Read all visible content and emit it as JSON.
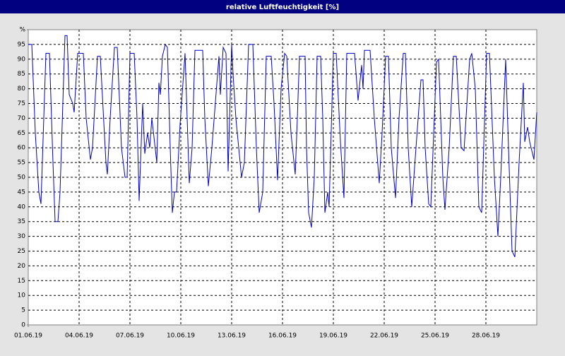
{
  "chart_data": {
    "type": "line",
    "title": "relative Luftfeuchtigkeit [%]",
    "x": [
      0,
      5,
      10,
      15,
      18,
      25,
      30,
      35,
      38,
      42,
      45,
      52,
      55,
      58,
      63,
      65,
      70,
      78,
      82,
      88,
      91,
      98,
      102,
      110,
      112,
      116,
      122,
      126,
      132,
      137,
      140,
      144,
      150,
      154,
      157,
      162,
      165,
      169,
      172,
      175,
      182,
      185,
      187,
      190,
      194,
      197,
      201,
      204,
      207,
      210,
      215,
      222,
      228,
      232,
      236,
      247,
      250,
      255,
      260,
      270,
      272,
      276,
      280,
      283,
      288,
      290,
      294,
      302,
      306,
      312,
      318,
      323,
      327,
      332,
      337,
      344,
      348,
      353,
      358,
      363,
      366,
      372,
      378,
      381,
      384,
      392,
      394,
      397,
      401,
      405,
      409,
      414,
      417,
      420,
      424,
      426,
      432,
      436,
      442,
      447,
      451,
      462,
      467,
      472,
      474,
      476,
      484,
      490,
      497,
      501,
      506,
      510,
      514,
      520,
      525,
      531,
      534,
      538,
      543,
      549,
      556,
      559,
      562,
      567,
      570,
      578,
      581,
      587,
      590,
      596,
      602,
      606,
      613,
      617,
      625,
      628,
      633,
      638,
      642,
      649,
      653,
      660,
      665,
      669,
      676,
      680,
      685,
      689,
      695,
      701,
      703,
      707,
      710,
      716,
      720
    ],
    "values": [
      95,
      95,
      65,
      45,
      41,
      92,
      92,
      55,
      35,
      35,
      45,
      98,
      98,
      78,
      75,
      72,
      92,
      92,
      70,
      56,
      60,
      91,
      91,
      55,
      51,
      70,
      94,
      94,
      60,
      50,
      50,
      92,
      92,
      70,
      42,
      75,
      58,
      65,
      60,
      70,
      55,
      82,
      78,
      91,
      95,
      94,
      60,
      38,
      45,
      45,
      68,
      92,
      48,
      60,
      93,
      93,
      70,
      47,
      60,
      91,
      78,
      94,
      92,
      52,
      95,
      85,
      70,
      50,
      55,
      95,
      95,
      60,
      38,
      45,
      91,
      91,
      75,
      49,
      80,
      92,
      91,
      65,
      51,
      70,
      91,
      91,
      60,
      38,
      33,
      50,
      91,
      91,
      70,
      38,
      45,
      40,
      92,
      92,
      62,
      43,
      92,
      92,
      76,
      88,
      80,
      93,
      93,
      70,
      48,
      65,
      91,
      91,
      60,
      43,
      70,
      92,
      92,
      60,
      40,
      60,
      83,
      83,
      60,
      41,
      40,
      89,
      90,
      50,
      39,
      60,
      91,
      91,
      60,
      59,
      90,
      92,
      80,
      40,
      38,
      92,
      92,
      50,
      30,
      50,
      90,
      60,
      25,
      23,
      55,
      82,
      62,
      67,
      62,
      56,
      72
    ],
    "color": "#0000c8",
    "xlim": [
      0,
      720
    ],
    "xticks": [
      {
        "value": 0,
        "label": "01.06.19"
      },
      {
        "value": 72,
        "label": "04.06.19"
      },
      {
        "value": 144,
        "label": "07.06.19"
      },
      {
        "value": 216,
        "label": "10.06.19"
      },
      {
        "value": 288,
        "label": "13.06.19"
      },
      {
        "value": 360,
        "label": "16.06.19"
      },
      {
        "value": 432,
        "label": "19.06.19"
      },
      {
        "value": 504,
        "label": "22.06.19"
      },
      {
        "value": 576,
        "label": "25.06.19"
      },
      {
        "value": 648,
        "label": "28.06.19"
      }
    ],
    "ylim": [
      0,
      100
    ],
    "yticks": [
      0,
      5,
      10,
      15,
      20,
      25,
      30,
      35,
      40,
      45,
      50,
      55,
      60,
      65,
      70,
      75,
      80,
      85,
      90,
      95,
      {
        "value": 100,
        "label": "%"
      }
    ],
    "grid": true
  }
}
